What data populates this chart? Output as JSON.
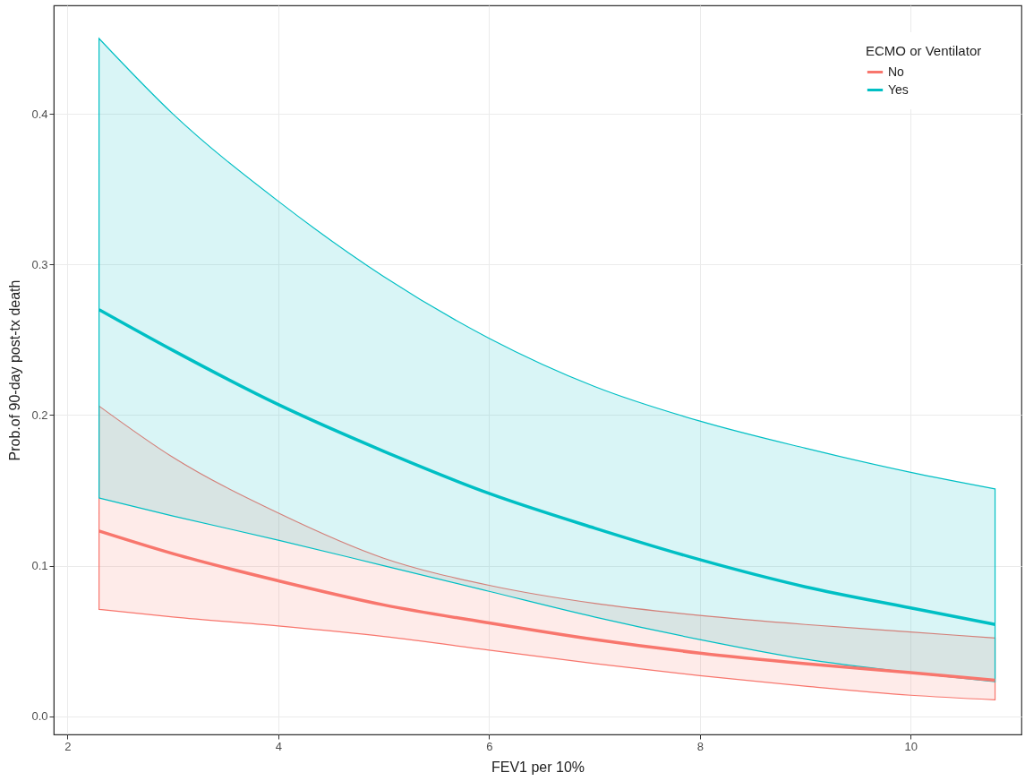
{
  "chart_data": {
    "type": "line",
    "xlabel": "FEV1 per 10%",
    "ylabel": "Prob.of 90-day post-tx death",
    "legend_title": "ECMO or Ventilator",
    "x": [
      2.3,
      3,
      4,
      5,
      6,
      7,
      8,
      9,
      10,
      10.8
    ],
    "series": [
      {
        "name": "No",
        "color": "#f8766d",
        "values": [
          0.123,
          0.108,
          0.09,
          0.074,
          0.062,
          0.051,
          0.042,
          0.035,
          0.029,
          0.024
        ],
        "lower": [
          0.071,
          0.066,
          0.06,
          0.053,
          0.044,
          0.035,
          0.027,
          0.02,
          0.014,
          0.011
        ],
        "upper": [
          0.206,
          0.172,
          0.135,
          0.105,
          0.087,
          0.075,
          0.067,
          0.061,
          0.056,
          0.052
        ]
      },
      {
        "name": "Yes",
        "color": "#00bfc4",
        "values": [
          0.27,
          0.243,
          0.207,
          0.176,
          0.148,
          0.125,
          0.104,
          0.086,
          0.072,
          0.061
        ],
        "lower": [
          0.145,
          0.133,
          0.117,
          0.1,
          0.083,
          0.066,
          0.051,
          0.038,
          0.029,
          0.023
        ],
        "upper": [
          0.45,
          0.4,
          0.342,
          0.292,
          0.251,
          0.219,
          0.196,
          0.178,
          0.162,
          0.151
        ]
      }
    ],
    "xlim": [
      1.87,
      11.05
    ],
    "ylim": [
      -0.012,
      0.472
    ],
    "xticks": [
      2,
      4,
      6,
      8,
      10
    ],
    "yticks": [
      {
        "value": 0,
        "label": "0.0"
      },
      0.1,
      0.2,
      0.3,
      0.4
    ],
    "grid": true,
    "legend": "top right",
    "line_style": "solid",
    "marker": "none"
  }
}
